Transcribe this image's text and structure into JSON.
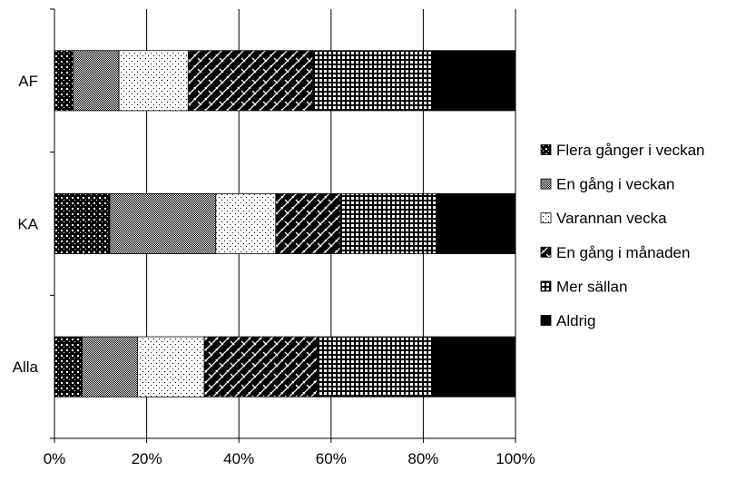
{
  "chart_data": {
    "type": "bar",
    "orientation": "horizontal",
    "stacked": "percent",
    "categories": [
      "AF",
      "KA",
      "Alla"
    ],
    "series": [
      {
        "name": "Flera gånger i veckan",
        "values": [
          4,
          12,
          6
        ],
        "pattern": "dots"
      },
      {
        "name": "En gång i veckan",
        "values": [
          10,
          23,
          12
        ],
        "pattern": "fine-checker"
      },
      {
        "name": "Varannan vecka",
        "values": [
          15,
          13,
          14.5
        ],
        "pattern": "sparse-dots"
      },
      {
        "name": "En gång i månaden",
        "values": [
          27,
          14,
          24.5
        ],
        "pattern": "diagonal-brick"
      },
      {
        "name": "Mer sällan",
        "values": [
          26,
          21,
          25
        ],
        "pattern": "grid"
      },
      {
        "name": "Aldrig",
        "values": [
          18,
          17,
          18
        ],
        "pattern": "solid"
      }
    ],
    "x_ticks": [
      "0%",
      "20%",
      "40%",
      "60%",
      "80%",
      "100%"
    ],
    "xlim": [
      0,
      100
    ],
    "grid": "vertical",
    "legend_position": "right",
    "colors": {
      "ink": "#000000",
      "grid": "#000000",
      "background": "#ffffff"
    }
  }
}
